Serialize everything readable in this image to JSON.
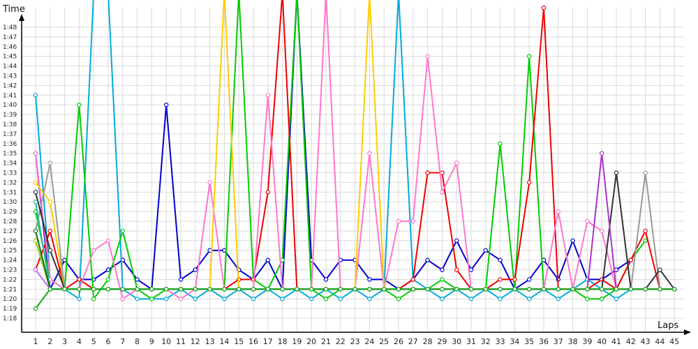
{
  "chart_data": {
    "type": "line",
    "title": "",
    "xlabel": "Laps",
    "ylabel": "Time",
    "x": [
      1,
      2,
      3,
      4,
      5,
      6,
      7,
      8,
      9,
      10,
      11,
      12,
      13,
      14,
      15,
      16,
      17,
      18,
      19,
      20,
      21,
      22,
      23,
      24,
      25,
      26,
      27,
      28,
      29,
      30,
      31,
      32,
      33,
      34,
      35,
      36,
      37,
      38,
      39,
      40,
      41,
      42,
      43,
      44,
      45
    ],
    "y_ticks": [
      "1:18",
      "1:19",
      "1:20",
      "1:21",
      "1:22",
      "1:23",
      "1:24",
      "1:25",
      "1:26",
      "1:27",
      "1:28",
      "1:29",
      "1:30",
      "1:31",
      "1:32",
      "1:33",
      "1:34",
      "1:35",
      "1:36",
      "1:37",
      "1:38",
      "1:39",
      "1:40",
      "1:41",
      "1:42",
      "1:43",
      "1:44",
      "1:45",
      "1:46",
      "1:47",
      "1:48"
    ],
    "ylim_seconds": [
      77,
      109.5
    ],
    "grid": true,
    "legend": "none",
    "series": [
      {
        "color": "#0000cc",
        "values": [
          95,
          81,
          84,
          82,
          82,
          83,
          84,
          82,
          81,
          100,
          82,
          83,
          85,
          85,
          83,
          82,
          84,
          81,
          120,
          84,
          82,
          84,
          84,
          82,
          82,
          81,
          82,
          84,
          83,
          86,
          83,
          85,
          84,
          81,
          82,
          84,
          82,
          86,
          82,
          82,
          83,
          84,
          "",
          "",
          ""
        ]
      },
      {
        "color": "#00aadd",
        "values": [
          101,
          82,
          81,
          80,
          140,
          130,
          81,
          80,
          80,
          80,
          81,
          80,
          81,
          80,
          81,
          80,
          81,
          80,
          81,
          80,
          81,
          80,
          81,
          80,
          81,
          130,
          82,
          81,
          80,
          81,
          80,
          81,
          80,
          81,
          80,
          81,
          80,
          81,
          82,
          81,
          80,
          81,
          "",
          "",
          ""
        ]
      },
      {
        "color": "#00cc00",
        "values": [
          89,
          82,
          81,
          100,
          80,
          82,
          87,
          81,
          80,
          81,
          81,
          81,
          81,
          81,
          120,
          82,
          81,
          84,
          120,
          81,
          80,
          81,
          81,
          81,
          81,
          80,
          81,
          81,
          82,
          81,
          81,
          81,
          96,
          81,
          105,
          81,
          81,
          81,
          80,
          80,
          81,
          84,
          86,
          "",
          ""
        ]
      },
      {
        "color": "#ee0000",
        "values": [
          83,
          87,
          81,
          82,
          81,
          81,
          81,
          81,
          81,
          81,
          81,
          81,
          81,
          81,
          82,
          82,
          91,
          120,
          81,
          81,
          81,
          81,
          81,
          81,
          81,
          81,
          82,
          93,
          93,
          83,
          81,
          81,
          82,
          82,
          92,
          110,
          81,
          81,
          81,
          82,
          81,
          84,
          87,
          81,
          81
        ]
      },
      {
        "color": "#ff77cc",
        "values": [
          95,
          82,
          81,
          81,
          85,
          86,
          80,
          81,
          81,
          81,
          80,
          81,
          92,
          81,
          81,
          81,
          101,
          81,
          81,
          81,
          120,
          81,
          81,
          95,
          81,
          88,
          88,
          105,
          91,
          94,
          81,
          81,
          81,
          81,
          81,
          81,
          89,
          81,
          88,
          87,
          81,
          81,
          81,
          81,
          81
        ]
      },
      {
        "color": "#ffcc00",
        "values": [
          92,
          90,
          81,
          81,
          81,
          81,
          81,
          81,
          81,
          81,
          81,
          81,
          81,
          120,
          81,
          81,
          81,
          81,
          81,
          81,
          81,
          81,
          81,
          120,
          81,
          81,
          81,
          81,
          81,
          81,
          81,
          81,
          81,
          81,
          81,
          81,
          81,
          81,
          81,
          81,
          81,
          81,
          81,
          81,
          81
        ]
      },
      {
        "color": "#999999",
        "values": [
          87,
          94,
          81,
          81,
          81,
          81,
          81,
          81,
          81,
          81,
          81,
          81,
          81,
          81,
          81,
          81,
          81,
          81,
          81,
          81,
          81,
          81,
          81,
          81,
          81,
          81,
          81,
          81,
          81,
          81,
          81,
          81,
          81,
          81,
          81,
          81,
          81,
          81,
          81,
          81,
          81,
          81,
          93,
          81,
          81
        ]
      },
      {
        "color": "#333333",
        "values": [
          91,
          85,
          81,
          81,
          81,
          81,
          81,
          81,
          81,
          81,
          81,
          81,
          81,
          81,
          81,
          81,
          81,
          81,
          81,
          81,
          81,
          81,
          81,
          81,
          81,
          81,
          81,
          81,
          81,
          81,
          81,
          81,
          81,
          81,
          81,
          81,
          81,
          81,
          81,
          81,
          93,
          81,
          81,
          83,
          81
        ]
      },
      {
        "color": "#aa33cc",
        "values": [
          86,
          81,
          81,
          81,
          81,
          81,
          81,
          81,
          81,
          81,
          81,
          81,
          81,
          81,
          81,
          81,
          81,
          81,
          81,
          81,
          81,
          81,
          81,
          81,
          81,
          81,
          81,
          81,
          81,
          81,
          81,
          81,
          81,
          81,
          81,
          81,
          81,
          81,
          81,
          95,
          81,
          81,
          81,
          81,
          81
        ]
      },
      {
        "color": "#22bbaa",
        "values": [
          90,
          81,
          81,
          81,
          81,
          81,
          81,
          81,
          81,
          81,
          81,
          81,
          81,
          81,
          81,
          81,
          81,
          81,
          81,
          81,
          81,
          81,
          81,
          81,
          81,
          81,
          81,
          81,
          81,
          81,
          81,
          81,
          81,
          81,
          81,
          81,
          81,
          81,
          81,
          81,
          81,
          81,
          81,
          81,
          81
        ]
      },
      {
        "color": "#88dd00",
        "values": [
          86,
          81,
          81,
          81,
          81,
          81,
          81,
          81,
          81,
          81,
          81,
          81,
          81,
          81,
          81,
          81,
          81,
          81,
          81,
          81,
          81,
          81,
          81,
          81,
          81,
          81,
          81,
          81,
          81,
          81,
          81,
          81,
          81,
          81,
          81,
          81,
          81,
          81,
          81,
          81,
          81,
          81,
          81,
          81,
          81
        ]
      },
      {
        "color": "#226622",
        "values": [
          87,
          81,
          81,
          81,
          81,
          81,
          81,
          81,
          81,
          81,
          81,
          81,
          81,
          81,
          81,
          81,
          81,
          81,
          81,
          81,
          81,
          81,
          81,
          81,
          81,
          81,
          81,
          81,
          81,
          81,
          81,
          81,
          81,
          81,
          81,
          81,
          81,
          81,
          81,
          81,
          81,
          81,
          81,
          81,
          81
        ]
      },
      {
        "color": "#bb66ff",
        "values": [
          83,
          81,
          81,
          81,
          81,
          81,
          81,
          81,
          81,
          81,
          81,
          81,
          81,
          81,
          81,
          81,
          81,
          81,
          81,
          81,
          81,
          81,
          81,
          81,
          81,
          81,
          81,
          81,
          81,
          81,
          81,
          81,
          81,
          81,
          81,
          81,
          81,
          81,
          81,
          81,
          81,
          81,
          81,
          81,
          81
        ]
      },
      {
        "color": "#11aa11",
        "values": [
          79,
          81,
          81,
          81,
          81,
          81,
          81,
          81,
          81,
          81,
          81,
          81,
          81,
          81,
          81,
          81,
          81,
          81,
          81,
          81,
          81,
          81,
          81,
          81,
          81,
          81,
          81,
          81,
          81,
          81,
          81,
          81,
          81,
          81,
          81,
          81,
          81,
          81,
          81,
          81,
          81,
          81,
          81,
          81,
          81
        ]
      }
    ]
  }
}
